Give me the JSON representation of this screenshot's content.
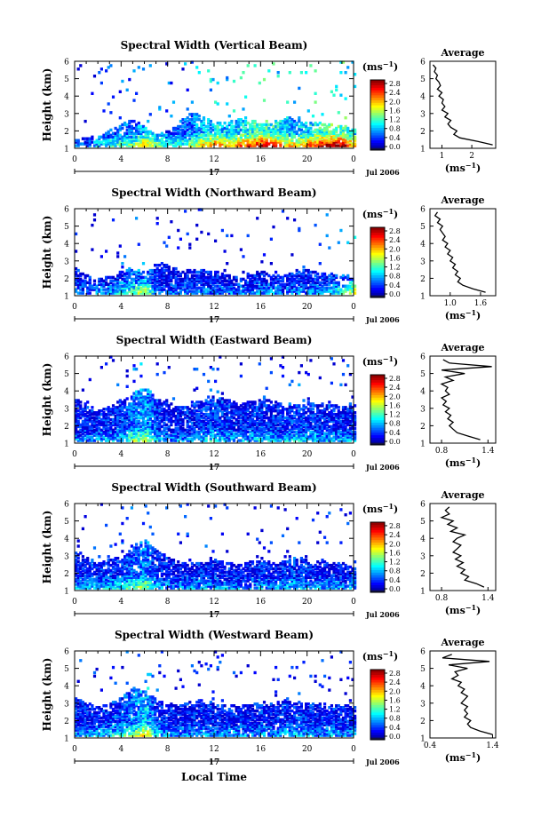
{
  "figure": {
    "xlabel_bottom": "Local Time",
    "date_label": "Jul 2006",
    "day_label": "17",
    "colorbar_unit": "(ms",
    "unit_exp": "−1",
    "unit_close": ")",
    "avg_title": "Average"
  },
  "chart_data": [
    {
      "type": "heatmap",
      "title": "Spectral Width (Vertical Beam)",
      "ylabel": "Height (km)",
      "x_ticks": [
        "0",
        "4",
        "8",
        "12",
        "16",
        "20",
        "0"
      ],
      "y_ticks": [
        "1",
        "2",
        "3",
        "4",
        "5",
        "6"
      ],
      "xlim": [
        0,
        24
      ],
      "ylim": [
        1,
        6
      ],
      "colorbar_ticks": [
        "2.8",
        "2.4",
        "2.0",
        "1.6",
        "1.2",
        "0.8",
        "0.4",
        "0.0"
      ],
      "colorbar_range": [
        0,
        2.8
      ],
      "echo_top_km": [
        1.5,
        1.6,
        1.8,
        2.1,
        2.4,
        2.7,
        2.2,
        1.8,
        2.0,
        2.6,
        3.1,
        2.8,
        2.6,
        2.5,
        2.7,
        2.6,
        2.5,
        2.6,
        2.8,
        2.7,
        2.6,
        2.5,
        2.4,
        2.3,
        2.1
      ],
      "mean_width": [
        0.5,
        0.4,
        0.8,
        0.9,
        1.0,
        1.2,
        1.6,
        1.2,
        0.9,
        1.0,
        1.2,
        1.6,
        1.8,
        1.6,
        1.7,
        2.0,
        2.2,
        2.0,
        1.6,
        1.5,
        1.8,
        2.1,
        2.3,
        2.2,
        1.6
      ],
      "average_profile": {
        "x_ticks": [
          "1",
          "2"
        ],
        "xlim": [
          0.6,
          2.8
        ],
        "height": [
          1.2,
          1.4,
          1.6,
          1.8,
          2.0,
          2.2,
          2.4,
          2.6,
          2.8,
          3.0,
          3.2,
          3.4,
          3.6,
          3.8,
          4.0,
          4.2,
          4.4,
          4.6,
          4.8,
          5.0,
          5.2,
          5.4,
          5.6,
          5.8
        ],
        "width": [
          2.7,
          2.2,
          1.6,
          1.4,
          1.5,
          1.3,
          1.2,
          1.3,
          1.1,
          1.2,
          1.0,
          1.1,
          1.0,
          1.05,
          0.9,
          1.0,
          0.85,
          0.95,
          0.9,
          0.8,
          0.85,
          0.75,
          0.8,
          0.7
        ]
      }
    },
    {
      "type": "heatmap",
      "title": "Spectral Width (Northward Beam)",
      "ylabel": "Height (km)",
      "x_ticks": [
        "0",
        "4",
        "8",
        "12",
        "16",
        "20",
        "0"
      ],
      "y_ticks": [
        "1",
        "2",
        "3",
        "4",
        "5",
        "6"
      ],
      "xlim": [
        0,
        24
      ],
      "ylim": [
        1,
        6
      ],
      "colorbar_ticks": [
        "2.8",
        "2.4",
        "2.0",
        "1.6",
        "1.2",
        "0.8",
        "0.4",
        "0.0"
      ],
      "colorbar_range": [
        0,
        2.8
      ],
      "echo_top_km": [
        2.6,
        2.2,
        2.0,
        2.1,
        2.5,
        2.6,
        2.3,
        2.9,
        2.8,
        2.4,
        2.5,
        2.6,
        2.4,
        2.2,
        2.1,
        2.3,
        2.4,
        2.3,
        2.2,
        2.4,
        2.5,
        2.3,
        2.3,
        2.2,
        2.0
      ],
      "mean_width": [
        0.6,
        0.5,
        0.6,
        0.7,
        0.9,
        1.1,
        1.3,
        0.6,
        0.5,
        0.5,
        0.6,
        0.6,
        0.5,
        0.5,
        0.6,
        0.5,
        0.6,
        0.6,
        0.5,
        0.6,
        0.6,
        0.7,
        0.8,
        1.0,
        1.4
      ],
      "average_profile": {
        "x_ticks": [
          "1.0",
          "1.6"
        ],
        "xlim": [
          0.6,
          1.9
        ],
        "height": [
          1.2,
          1.4,
          1.6,
          1.8,
          2.0,
          2.2,
          2.4,
          2.6,
          2.8,
          3.0,
          3.2,
          3.4,
          3.6,
          3.8,
          4.0,
          4.2,
          4.4,
          4.6,
          4.8,
          5.0,
          5.2,
          5.4,
          5.6,
          5.8
        ],
        "width": [
          1.7,
          1.45,
          1.25,
          1.15,
          1.2,
          1.1,
          1.15,
          1.05,
          1.1,
          1.0,
          1.05,
          0.95,
          1.0,
          0.9,
          0.95,
          0.85,
          0.9,
          0.85,
          0.8,
          0.85,
          0.75,
          0.8,
          0.7,
          0.75
        ]
      }
    },
    {
      "type": "heatmap",
      "title": "Spectral Width (Eastward Beam)",
      "ylabel": "Height (km)",
      "x_ticks": [
        "0",
        "4",
        "8",
        "12",
        "16",
        "20",
        "0"
      ],
      "y_ticks": [
        "1",
        "2",
        "3",
        "4",
        "5",
        "6"
      ],
      "xlim": [
        0,
        24
      ],
      "ylim": [
        1,
        6
      ],
      "colorbar_ticks": [
        "2.8",
        "2.4",
        "2.0",
        "1.6",
        "1.2",
        "0.8",
        "0.4",
        "0.0"
      ],
      "colorbar_range": [
        0,
        2.8
      ],
      "echo_top_km": [
        3.6,
        3.2,
        2.9,
        3.1,
        3.6,
        3.9,
        4.2,
        3.6,
        3.3,
        3.1,
        3.2,
        3.6,
        3.8,
        3.5,
        3.3,
        3.4,
        3.6,
        3.4,
        3.3,
        3.2,
        3.4,
        3.3,
        3.2,
        3.1,
        3.2
      ],
      "mean_width": [
        0.6,
        0.6,
        0.7,
        0.7,
        0.8,
        1.2,
        1.4,
        0.8,
        0.6,
        0.6,
        0.7,
        0.8,
        0.9,
        0.7,
        0.7,
        0.7,
        0.8,
        0.7,
        0.7,
        0.9,
        0.8,
        0.7,
        0.7,
        0.7,
        0.6
      ],
      "average_profile": {
        "x_ticks": [
          "0.8",
          "1.4"
        ],
        "xlim": [
          0.65,
          1.5
        ],
        "height": [
          1.2,
          1.4,
          1.6,
          1.8,
          2.0,
          2.2,
          2.4,
          2.6,
          2.8,
          3.0,
          3.2,
          3.4,
          3.6,
          3.8,
          4.0,
          4.2,
          4.4,
          4.6,
          4.8,
          5.0,
          5.2,
          5.4,
          5.6,
          5.8
        ],
        "width": [
          1.3,
          1.15,
          1.0,
          0.95,
          0.9,
          0.95,
          0.88,
          0.92,
          0.85,
          0.9,
          0.82,
          0.86,
          0.8,
          0.9,
          0.85,
          0.88,
          0.8,
          0.95,
          0.85,
          1.1,
          0.8,
          1.45,
          0.9,
          0.82
        ]
      }
    },
    {
      "type": "heatmap",
      "title": "Spectral Width (Southward Beam)",
      "ylabel": "Height (km)",
      "x_ticks": [
        "0",
        "4",
        "8",
        "12",
        "16",
        "20",
        "0"
      ],
      "y_ticks": [
        "1",
        "2",
        "3",
        "4",
        "5",
        "6"
      ],
      "xlim": [
        0,
        24
      ],
      "ylim": [
        1,
        6
      ],
      "colorbar_ticks": [
        "2.8",
        "2.4",
        "2.0",
        "1.6",
        "1.2",
        "0.8",
        "0.4",
        "0.0"
      ],
      "colorbar_range": [
        0,
        2.8
      ],
      "echo_top_km": [
        3.2,
        2.9,
        2.6,
        2.8,
        3.0,
        3.6,
        3.9,
        3.3,
        2.9,
        2.7,
        2.6,
        2.7,
        2.8,
        2.6,
        2.5,
        2.7,
        2.8,
        2.6,
        2.7,
        2.9,
        2.8,
        2.7,
        2.6,
        2.5,
        2.4
      ],
      "mean_width": [
        0.6,
        0.7,
        0.7,
        0.8,
        0.9,
        1.1,
        1.3,
        0.7,
        0.6,
        0.6,
        0.6,
        0.7,
        0.6,
        0.6,
        0.6,
        0.6,
        0.7,
        0.6,
        0.7,
        0.8,
        0.7,
        0.6,
        0.7,
        0.6,
        0.6
      ],
      "average_profile": {
        "x_ticks": [
          "0.8",
          "1.4"
        ],
        "xlim": [
          0.65,
          1.5
        ],
        "height": [
          1.2,
          1.4,
          1.6,
          1.8,
          2.0,
          2.2,
          2.4,
          2.6,
          2.8,
          3.0,
          3.2,
          3.4,
          3.6,
          3.8,
          4.0,
          4.2,
          4.4,
          4.6,
          4.8,
          5.0,
          5.2,
          5.4,
          5.6,
          5.8
        ],
        "width": [
          1.35,
          1.25,
          1.1,
          1.15,
          1.05,
          1.1,
          1.0,
          1.08,
          0.98,
          1.05,
          0.95,
          1.0,
          1.05,
          0.95,
          1.0,
          1.1,
          0.92,
          1.0,
          0.88,
          0.95,
          0.8,
          0.9,
          0.85,
          0.9
        ]
      }
    },
    {
      "type": "heatmap",
      "title": "Spectral Width (Westward Beam)",
      "ylabel": "Height (km)",
      "x_ticks": [
        "0",
        "4",
        "8",
        "12",
        "16",
        "20",
        "0"
      ],
      "y_ticks": [
        "1",
        "2",
        "3",
        "4",
        "5",
        "6"
      ],
      "xlim": [
        0,
        24
      ],
      "ylim": [
        1,
        6
      ],
      "colorbar_ticks": [
        "2.8",
        "2.4",
        "2.0",
        "1.6",
        "1.2",
        "0.8",
        "0.4",
        "0.0"
      ],
      "colorbar_range": [
        0,
        2.8
      ],
      "echo_top_km": [
        3.3,
        3.0,
        2.8,
        3.0,
        3.4,
        3.9,
        3.7,
        3.2,
        3.0,
        2.9,
        3.1,
        3.2,
        3.0,
        2.9,
        2.9,
        3.0,
        3.1,
        3.0,
        3.2,
        3.1,
        3.0,
        3.0,
        2.9,
        2.9,
        2.8
      ],
      "mean_width": [
        0.6,
        0.7,
        0.7,
        0.8,
        0.9,
        1.2,
        1.6,
        0.8,
        0.6,
        0.6,
        0.6,
        0.7,
        0.6,
        0.6,
        0.7,
        0.6,
        0.7,
        0.6,
        0.7,
        0.8,
        0.7,
        0.6,
        0.7,
        0.6,
        0.6
      ],
      "average_profile": {
        "x_ticks": [
          "0.4",
          "1.4"
        ],
        "xlim": [
          0.4,
          1.45
        ],
        "height": [
          1.2,
          1.4,
          1.6,
          1.8,
          2.0,
          2.2,
          2.4,
          2.6,
          2.8,
          3.0,
          3.2,
          3.4,
          3.6,
          3.8,
          4.0,
          4.2,
          4.4,
          4.6,
          4.8,
          5.0,
          5.2,
          5.4,
          5.6,
          5.8
        ],
        "width": [
          1.4,
          1.2,
          1.05,
          1.0,
          1.05,
          0.95,
          1.0,
          0.95,
          1.0,
          0.9,
          0.95,
          1.0,
          0.9,
          0.95,
          0.85,
          0.9,
          0.75,
          0.85,
          0.8,
          1.0,
          0.7,
          1.35,
          0.6,
          0.75
        ]
      }
    }
  ]
}
